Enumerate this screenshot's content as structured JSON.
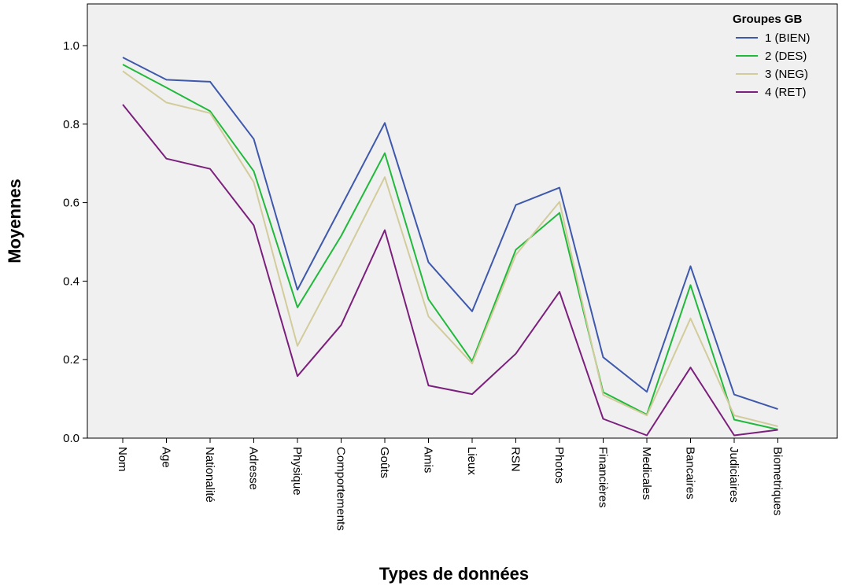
{
  "chart_data": {
    "type": "line",
    "xlabel": "Types de données",
    "ylabel": "Moyennes",
    "ylim": [
      0,
      1.1
    ],
    "yticks": [
      "0.0",
      "0.2",
      "0.4",
      "0.6",
      "0.8",
      "1.0"
    ],
    "grid": false,
    "legend_title": "Groupes GB",
    "legend_position": "top-right",
    "plot_background": "#f0f0f0",
    "categories": [
      "Nom",
      "Age",
      "Nationalité",
      "Adresse",
      "Physique",
      "Comportements",
      "Goûts",
      "Amis",
      "Lieux",
      "RSN",
      "Photos",
      "Financières",
      "Medicales",
      "Bancaires",
      "Judiciaires",
      "Biometriques"
    ],
    "series": [
      {
        "name": "1 (BIEN)",
        "color": "#3e58ac",
        "values": [
          0.97,
          0.913,
          0.908,
          0.762,
          0.378,
          0.59,
          0.803,
          0.448,
          0.323,
          0.594,
          0.638,
          0.206,
          0.118,
          0.438,
          0.111,
          0.074
        ]
      },
      {
        "name": "2 (DES)",
        "color": "#21b93b",
        "values": [
          0.952,
          0.893,
          0.833,
          0.68,
          0.333,
          0.515,
          0.726,
          0.354,
          0.196,
          0.48,
          0.574,
          0.117,
          0.06,
          0.39,
          0.047,
          0.022
        ]
      },
      {
        "name": "3 (NEG)",
        "color": "#d2cc9c",
        "values": [
          0.935,
          0.855,
          0.828,
          0.652,
          0.235,
          0.445,
          0.665,
          0.31,
          0.19,
          0.467,
          0.602,
          0.11,
          0.058,
          0.305,
          0.058,
          0.03
        ]
      },
      {
        "name": "4 (RET)",
        "color": "#7b1f7c",
        "values": [
          0.85,
          0.712,
          0.686,
          0.542,
          0.158,
          0.288,
          0.53,
          0.134,
          0.112,
          0.215,
          0.373,
          0.049,
          0.007,
          0.18,
          0.007,
          0.021
        ]
      }
    ]
  }
}
